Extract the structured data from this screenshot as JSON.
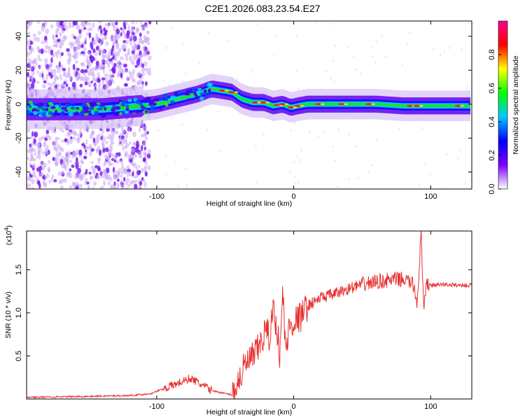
{
  "title": "C2E1.2026.083.23.54.E27",
  "chart_data": [
    {
      "type": "heatmap",
      "title": "C2E1.2026.083.23.54.E27",
      "xlabel": "Height of straight line (km)",
      "ylabel": "Frequency (Hz)",
      "xlim": [
        -195,
        130
      ],
      "ylim": [
        -50,
        49
      ],
      "xticks": [
        -100,
        0,
        100
      ],
      "xtick_labels": [
        "-100",
        "0",
        "100"
      ],
      "yticks": [
        -40,
        -20,
        0,
        20,
        40
      ],
      "ytick_labels": [
        "-40",
        "-20",
        "0",
        "20",
        "40"
      ],
      "ridge": {
        "x": [
          -195,
          -180,
          -160,
          -140,
          -125,
          -110,
          -100,
          -85,
          -70,
          -60,
          -52,
          -45,
          -38,
          -30,
          -22,
          -15,
          -8,
          -2,
          3,
          10,
          20,
          40,
          60,
          80,
          100,
          115,
          130
        ],
        "y": [
          -3,
          -3,
          -3,
          -3,
          -2,
          -1,
          0,
          3,
          6,
          9,
          8,
          7,
          3,
          1,
          1,
          -1,
          0,
          -2,
          -1,
          0,
          0,
          0,
          0,
          -1,
          -1,
          -1,
          -1
        ]
      },
      "colorbar": {
        "label": "Normalized spectral amplitude",
        "range": [
          0,
          1
        ],
        "ticks": [
          0.0,
          0.2,
          0.4,
          0.6,
          0.8
        ],
        "tick_labels": [
          "0.0",
          "0.2",
          "0.4",
          "0.6",
          "0.8"
        ],
        "colors": [
          "#ffffff",
          "#7a00ff",
          "#0000ff",
          "#00c8ff",
          "#00ff00",
          "#ffff00",
          "#ff0000",
          "#ff0090"
        ]
      }
    },
    {
      "type": "line",
      "xlabel": "Height of straight line (km)",
      "ylabel": "SNR (10 * v/v)",
      "y_multiplier": "(x10",
      "y_multiplier_exp": "4",
      "y_multiplier_close": ")",
      "xlim": [
        -195,
        130
      ],
      "ylim": [
        0,
        1.95
      ],
      "xticks": [
        -100,
        0,
        100
      ],
      "xtick_labels": [
        "-100",
        "0",
        "100"
      ],
      "yticks": [
        0.5,
        1.0,
        1.5
      ],
      "ytick_labels": [
        "0.5",
        "1.0",
        "1.5"
      ],
      "line_color": "#e83030",
      "series": [
        {
          "name": "SNR",
          "x": [
            -195,
            -150,
            -120,
            -105,
            -95,
            -85,
            -75,
            -68,
            -60,
            -52,
            -45,
            -40,
            -36,
            -32,
            -28,
            -24,
            -20,
            -18,
            -15,
            -12,
            -10,
            -8,
            -6,
            -3,
            0,
            5,
            10,
            20,
            30,
            40,
            50,
            60,
            70,
            80,
            85,
            88,
            90,
            93,
            95,
            97,
            100,
            110,
            120,
            130
          ],
          "y": [
            0.02,
            0.03,
            0.04,
            0.06,
            0.12,
            0.18,
            0.24,
            0.17,
            0.1,
            0.07,
            0.05,
            0.22,
            0.38,
            0.45,
            0.52,
            0.65,
            0.82,
            0.7,
            1.05,
            0.8,
            0.5,
            1.28,
            0.55,
            0.85,
            0.9,
            0.95,
            1.08,
            1.18,
            1.22,
            1.28,
            1.33,
            1.36,
            1.38,
            1.39,
            1.36,
            1.3,
            1.1,
            1.9,
            1.0,
            1.34,
            1.32,
            1.33,
            1.32,
            1.32
          ]
        }
      ]
    }
  ]
}
